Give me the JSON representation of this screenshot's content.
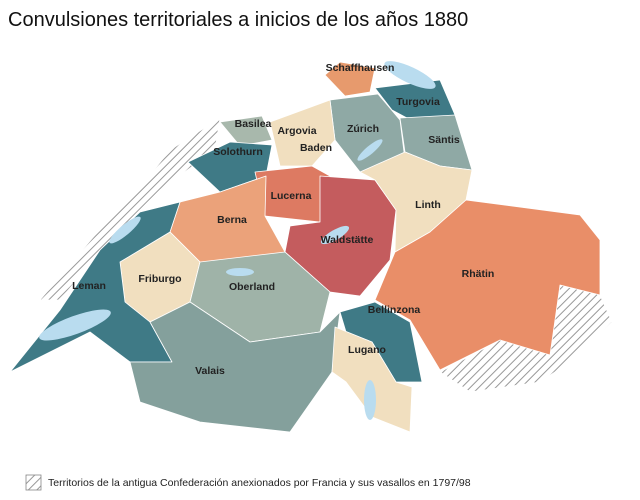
{
  "title": "Convulsiones territoriales a inicios de los años 1880",
  "regions": [
    {
      "label": "Schaffhausen"
    },
    {
      "label": "Turgovia"
    },
    {
      "label": "Basilea"
    },
    {
      "label": "Argovia"
    },
    {
      "label": "Zúrich"
    },
    {
      "label": "Säntis"
    },
    {
      "label": "Solothurn"
    },
    {
      "label": "Baden"
    },
    {
      "label": "Lucerna"
    },
    {
      "label": "Berna"
    },
    {
      "label": "Linth"
    },
    {
      "label": "Waldstätte"
    },
    {
      "label": "Rhätin"
    },
    {
      "label": "Friburgo"
    },
    {
      "label": "Leman"
    },
    {
      "label": "Oberland"
    },
    {
      "label": "Bellinzona"
    },
    {
      "label": "Lugano"
    },
    {
      "label": "Valais"
    }
  ],
  "legend": {
    "label": "Territorios de la antigua Confederación anexionados por Francia y sus vasallos en 1797/98"
  }
}
